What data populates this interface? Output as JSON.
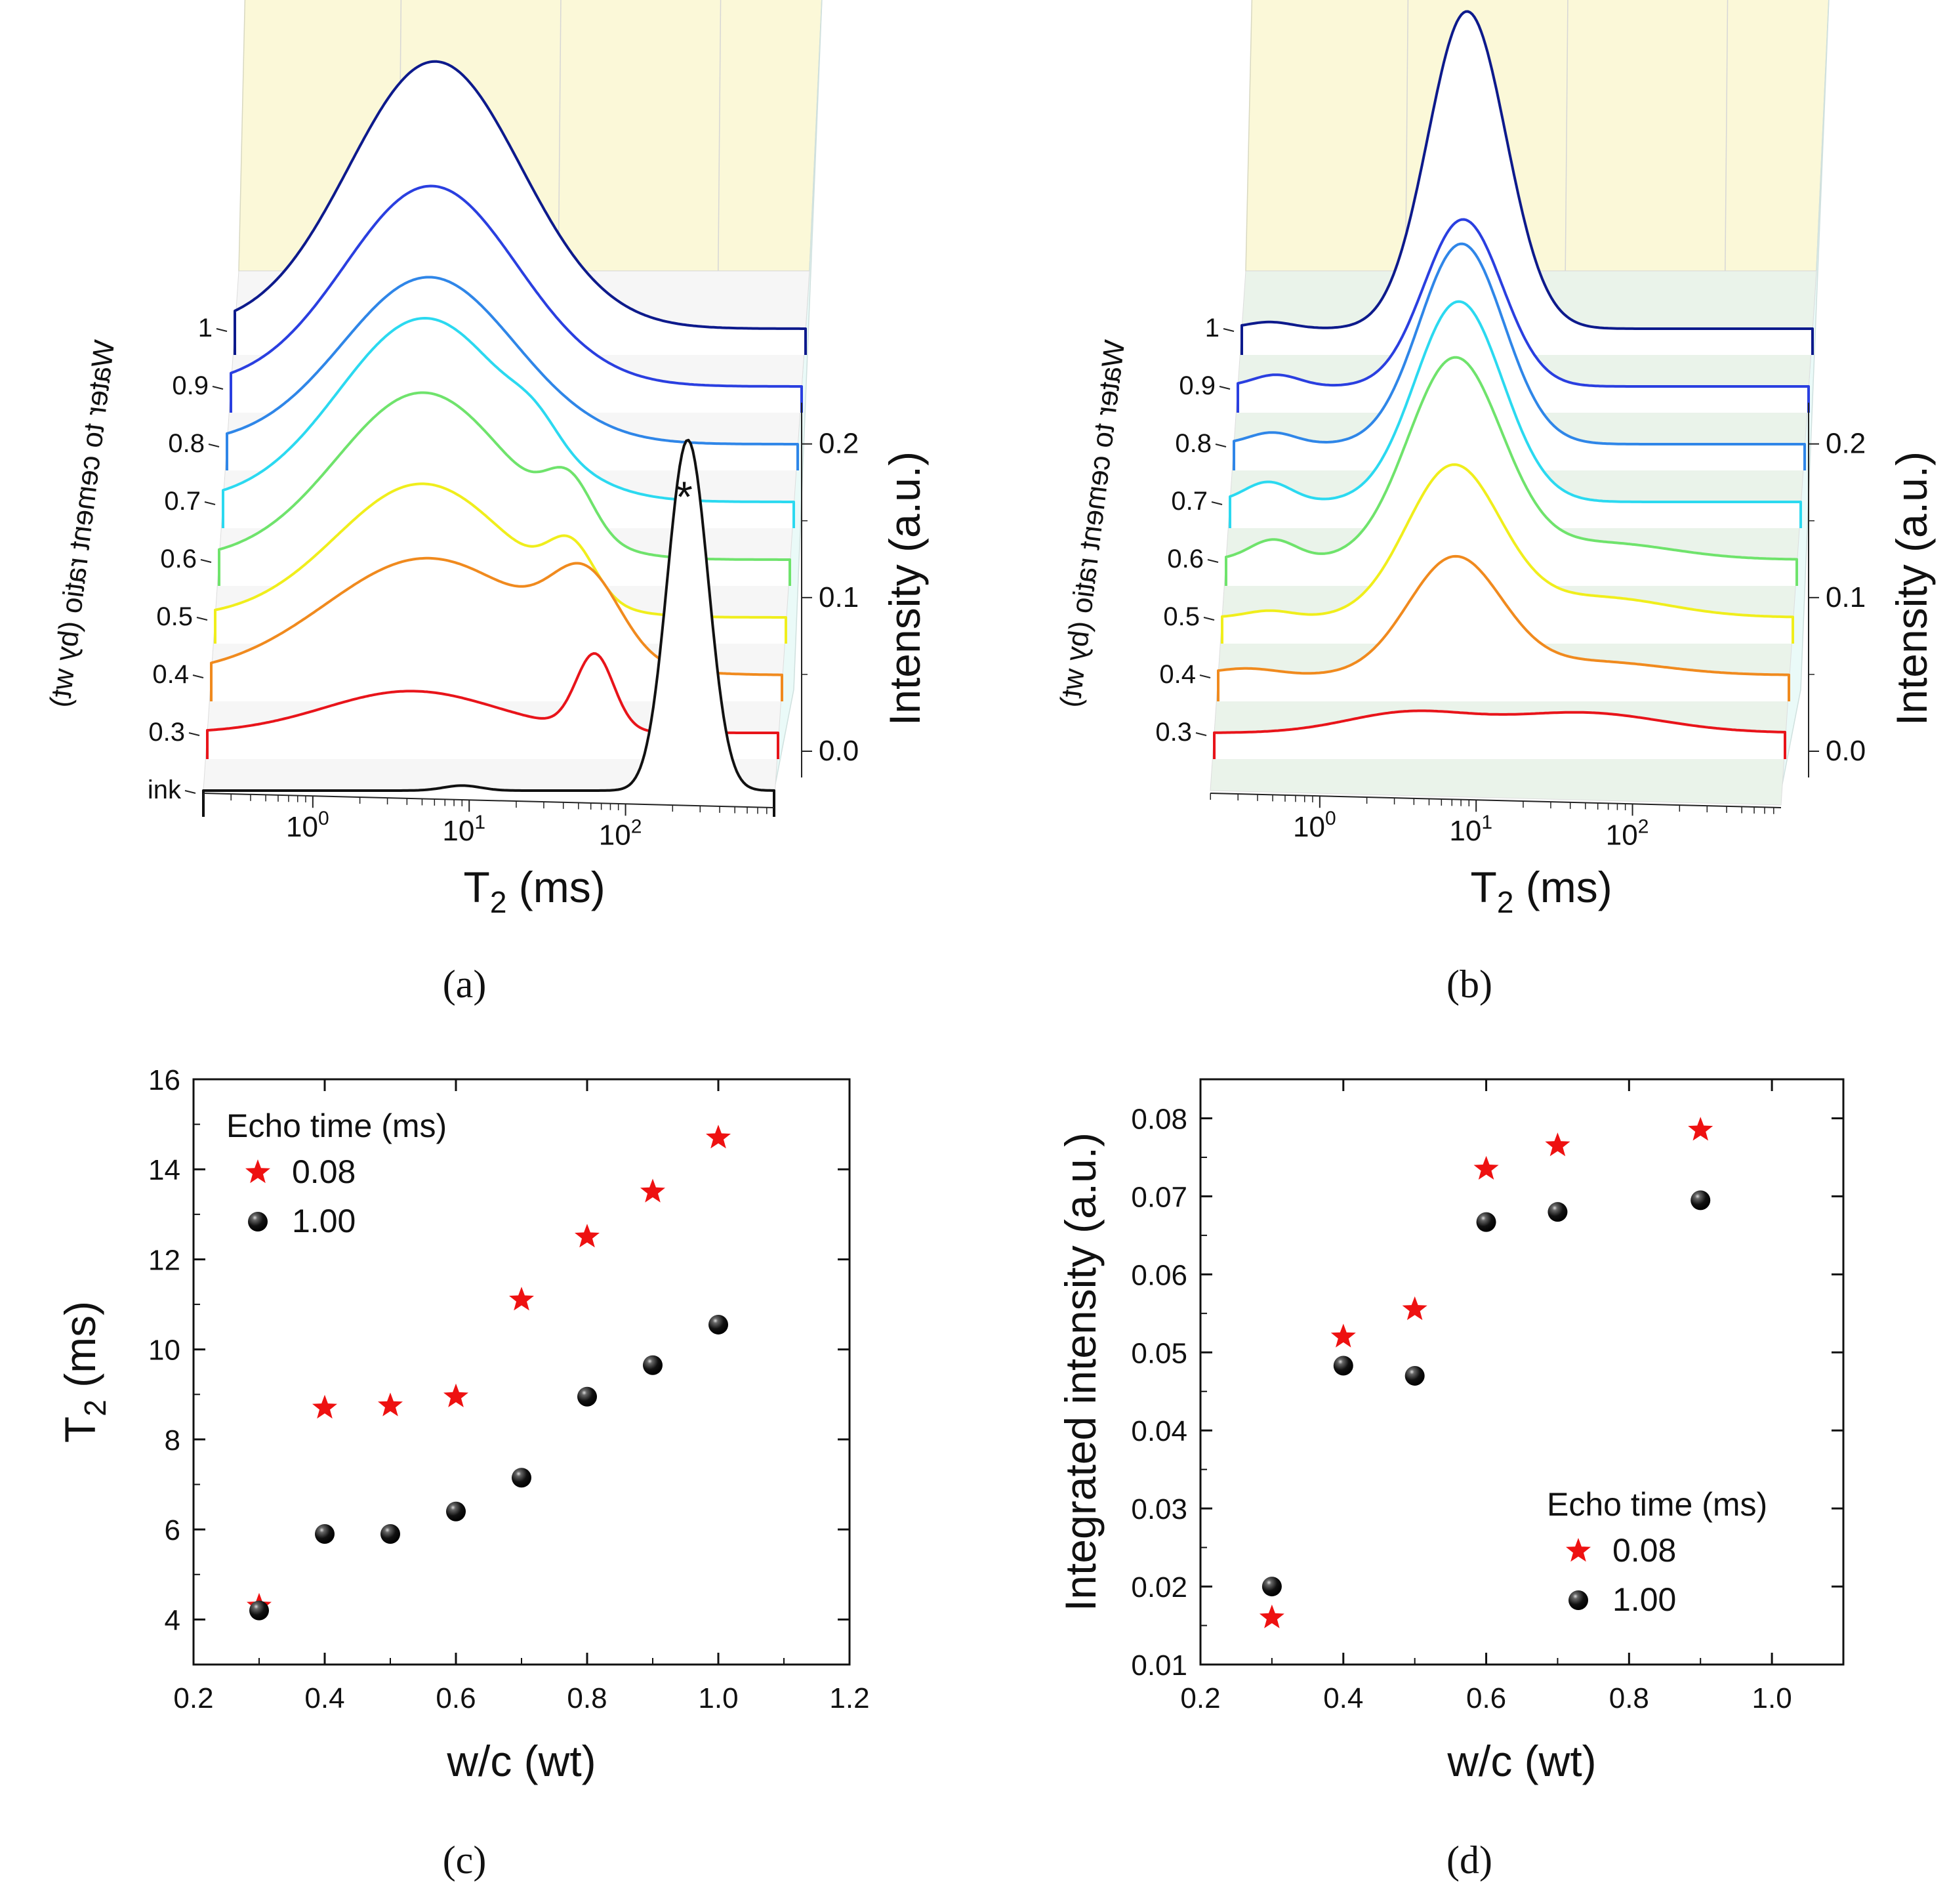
{
  "chart_data": [
    {
      "panel": "a",
      "type": "line",
      "caption": "(a)",
      "xlabel_main": "T",
      "xlabel_sub": "2",
      "xlabel_unit": " (ms)",
      "xscale": "log",
      "xticks": [
        {
          "base": "10",
          "exp": "0"
        },
        {
          "base": "10",
          "exp": "1"
        },
        {
          "base": "10",
          "exp": "2"
        }
      ],
      "depth_label": "Water to cement ratio (by wt)",
      "depth_ticks": [
        "1",
        "0.9",
        "0.8",
        "0.7",
        "0.6",
        "0.5",
        "0.4",
        "0.3",
        "ink"
      ],
      "zlabel": "Intensity (a.u.)",
      "zticks": [
        "0.2",
        "0.1",
        "0.0"
      ],
      "zlim": [
        0,
        0.22
      ],
      "annotation": "*",
      "series": [
        {
          "name": "1",
          "color": "#0d1a8c",
          "peaks": [
            [
              3.8,
              0.55,
              0.16
            ]
          ],
          "z0": 0.0
        },
        {
          "name": "0.9",
          "color": "#2a3fe0",
          "peaks": [
            [
              3.8,
              0.55,
              0.12
            ]
          ],
          "z0": 0.0
        },
        {
          "name": "0.8",
          "color": "#2f86e8",
          "peaks": [
            [
              3.9,
              0.55,
              0.1
            ]
          ],
          "z0": 0.0
        },
        {
          "name": "0.7",
          "color": "#2bd9f0",
          "peaks": [
            [
              3.9,
              0.55,
              0.11
            ],
            [
              20,
              0.15,
              0.012
            ]
          ],
          "z0": 0.0
        },
        {
          "name": "0.6",
          "color": "#6fe36c",
          "peaks": [
            [
              4.0,
              0.55,
              0.1
            ],
            [
              35,
              0.15,
              0.03
            ]
          ],
          "z0": 0.0
        },
        {
          "name": "0.5",
          "color": "#f0ee1c",
          "peaks": [
            [
              4.2,
              0.55,
              0.08
            ],
            [
              38,
              0.15,
              0.03
            ]
          ],
          "z0": 0.0
        },
        {
          "name": "0.4",
          "color": "#f08a1e",
          "peaks": [
            [
              4.8,
              0.65,
              0.07
            ],
            [
              50,
              0.22,
              0.045
            ]
          ],
          "z0": 0.0
        },
        {
          "name": "0.3",
          "color": "#e8141a",
          "peaks": [
            [
              4.0,
              0.55,
              0.025
            ],
            [
              60,
              0.12,
              0.045
            ]
          ],
          "z0": 0.0
        },
        {
          "name": "ink",
          "color": "#111111",
          "peaks": [
            [
              9,
              0.12,
              0.003
            ],
            [
              250,
              0.13,
              0.21
            ]
          ],
          "z0": 0.0
        }
      ]
    },
    {
      "panel": "b",
      "type": "line",
      "caption": "(b)",
      "xlabel_main": "T",
      "xlabel_sub": "2",
      "xlabel_unit": " (ms)",
      "xscale": "log",
      "xticks": [
        {
          "base": "10",
          "exp": "0"
        },
        {
          "base": "10",
          "exp": "1"
        },
        {
          "base": "10",
          "exp": "2"
        }
      ],
      "depth_label": "Water to cement ratio (by wt)",
      "depth_ticks": [
        "1",
        "0.9",
        "0.8",
        "0.7",
        "0.6",
        "0.5",
        "0.4",
        "0.3"
      ],
      "zlabel": "Intensity (a.u.)",
      "zticks": [
        "0.2",
        "0.1",
        "0.0"
      ],
      "zlim": [
        0,
        0.22
      ],
      "series": [
        {
          "name": "1",
          "color": "#0d1a8c",
          "peaks": [
            [
              0.3,
              0.15,
              0.004
            ],
            [
              5.5,
              0.25,
              0.19
            ]
          ],
          "z0": 0.0
        },
        {
          "name": "0.9",
          "color": "#2a3fe0",
          "peaks": [
            [
              0.35,
              0.15,
              0.007
            ],
            [
              5.5,
              0.25,
              0.1
            ]
          ],
          "z0": 0.0
        },
        {
          "name": "0.8",
          "color": "#2f86e8",
          "peaks": [
            [
              0.35,
              0.15,
              0.007
            ],
            [
              5.7,
              0.27,
              0.12
            ]
          ],
          "z0": 0.0
        },
        {
          "name": "0.7",
          "color": "#2bd9f0",
          "peaks": [
            [
              0.35,
              0.15,
              0.012
            ],
            [
              5.8,
              0.28,
              0.12
            ]
          ],
          "z0": 0.0
        },
        {
          "name": "0.6",
          "color": "#6fe36c",
          "peaks": [
            [
              0.4,
              0.15,
              0.012
            ],
            [
              5.8,
              0.3,
              0.12
            ],
            [
              50,
              0.45,
              0.01
            ]
          ],
          "z0": 0.0
        },
        {
          "name": "0.5",
          "color": "#f0ee1c",
          "peaks": [
            [
              0.4,
              0.15,
              0.004
            ],
            [
              6.0,
              0.3,
              0.09
            ],
            [
              50,
              0.45,
              0.012
            ]
          ],
          "z0": 0.0
        },
        {
          "name": "0.4",
          "color": "#f08a1e",
          "peaks": [
            [
              0.3,
              0.2,
              0.004
            ],
            [
              6.5,
              0.3,
              0.07
            ],
            [
              50,
              0.45,
              0.008
            ]
          ],
          "z0": 0.0
        },
        {
          "name": "0.3",
          "color": "#e8141a",
          "peaks": [
            [
              3.5,
              0.4,
              0.012
            ],
            [
              45,
              0.5,
              0.012
            ]
          ],
          "z0": 0.0
        }
      ]
    },
    {
      "panel": "c",
      "type": "scatter",
      "caption": "(c)",
      "xlabel": "w/c (wt)",
      "ylabel_main": "T",
      "ylabel_sub": "2",
      "ylabel_unit": " (ms)",
      "xlim": [
        0.2,
        1.2
      ],
      "ylim": [
        3,
        16
      ],
      "xticks": [
        "0.2",
        "0.4",
        "0.6",
        "0.8",
        "1.0",
        "1.2"
      ],
      "yticks": [
        "4",
        "6",
        "8",
        "10",
        "12",
        "14",
        "16"
      ],
      "legend_title": "Echo time (ms)",
      "legend_position": "top-left",
      "series": [
        {
          "name": "0.08",
          "marker": "star",
          "color": "#ee1111",
          "x": [
            0.3,
            0.4,
            0.5,
            0.6,
            0.7,
            0.8,
            0.9,
            1.0
          ],
          "y": [
            4.3,
            8.7,
            8.75,
            8.95,
            11.1,
            12.5,
            13.5,
            14.7
          ]
        },
        {
          "name": "1.00",
          "marker": "sphere",
          "color": "#111111",
          "x": [
            0.3,
            0.4,
            0.5,
            0.6,
            0.7,
            0.8,
            0.9,
            1.0
          ],
          "y": [
            4.2,
            5.9,
            5.9,
            6.4,
            7.15,
            8.95,
            9.65,
            10.55
          ]
        }
      ]
    },
    {
      "panel": "d",
      "type": "scatter",
      "caption": "(d)",
      "xlabel": "w/c (wt)",
      "ylabel": "Integrated intensity (a.u.)",
      "xlim": [
        0.2,
        1.1
      ],
      "ylim": [
        0.01,
        0.085
      ],
      "xticks": [
        "0.2",
        "0.4",
        "0.6",
        "0.8",
        "1.0"
      ],
      "yticks": [
        "0.01",
        "0.02",
        "0.03",
        "0.04",
        "0.05",
        "0.06",
        "0.07",
        "0.08"
      ],
      "legend_title": "Echo time (ms)",
      "legend_position": "bottom-right",
      "series": [
        {
          "name": "0.08",
          "marker": "star",
          "color": "#ee1111",
          "x": [
            0.3,
            0.4,
            0.5,
            0.6,
            0.7,
            0.9
          ],
          "y": [
            0.016,
            0.052,
            0.0555,
            0.0735,
            0.0765,
            0.0785
          ]
        },
        {
          "name": "1.00",
          "marker": "sphere",
          "color": "#111111",
          "x": [
            0.3,
            0.4,
            0.5,
            0.6,
            0.7,
            0.9
          ],
          "y": [
            0.02,
            0.0483,
            0.047,
            0.0667,
            0.068,
            0.0695
          ]
        }
      ]
    }
  ]
}
